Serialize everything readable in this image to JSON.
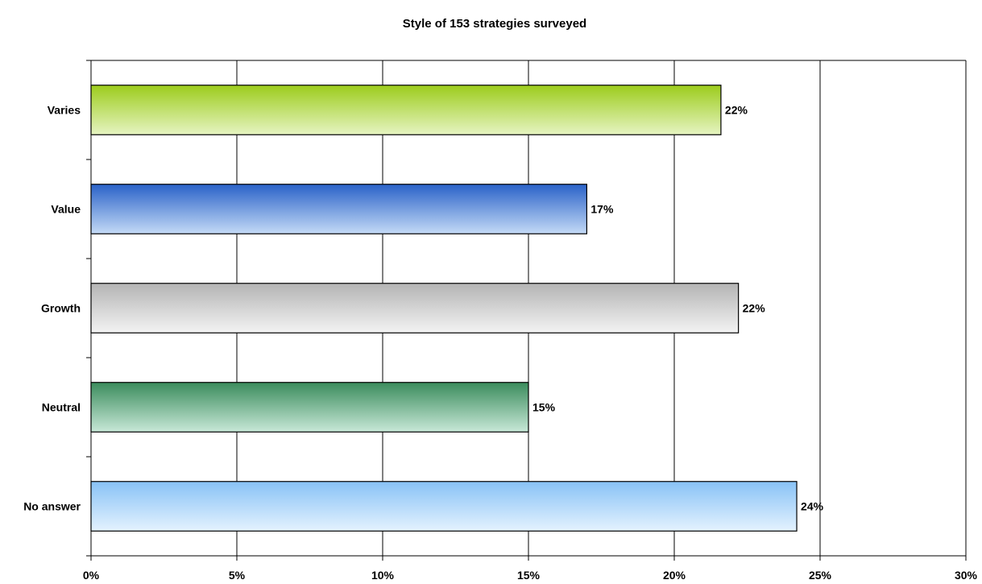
{
  "chart_data": {
    "type": "bar",
    "orientation": "horizontal",
    "title": "Style of 153 strategies surveyed",
    "xlabel": "",
    "ylabel": "",
    "categories": [
      "Varies",
      "Value",
      "Growth",
      "Neutral",
      "No answer"
    ],
    "values": [
      0.216,
      0.17,
      0.222,
      0.15,
      0.242
    ],
    "data_labels": [
      "22%",
      "17%",
      "22%",
      "15%",
      "24%"
    ],
    "xlim": [
      0,
      0.3
    ],
    "x_ticks": [
      0,
      0.05,
      0.1,
      0.15,
      0.2,
      0.25,
      0.3
    ],
    "x_tick_labels": [
      "0%",
      "5%",
      "10%",
      "15%",
      "20%",
      "25%",
      "30%"
    ],
    "grid": true,
    "legend": false,
    "bar_colors": [
      {
        "top": "#9ccc1c",
        "bottom": "#e6f4c2"
      },
      {
        "top": "#2a62c8",
        "bottom": "#c4daf6"
      },
      {
        "top": "#b4b4b4",
        "bottom": "#f3f3f3"
      },
      {
        "top": "#3b8c5c",
        "bottom": "#c8e8d8"
      },
      {
        "top": "#88c2f6",
        "bottom": "#e4f2fe"
      }
    ]
  }
}
